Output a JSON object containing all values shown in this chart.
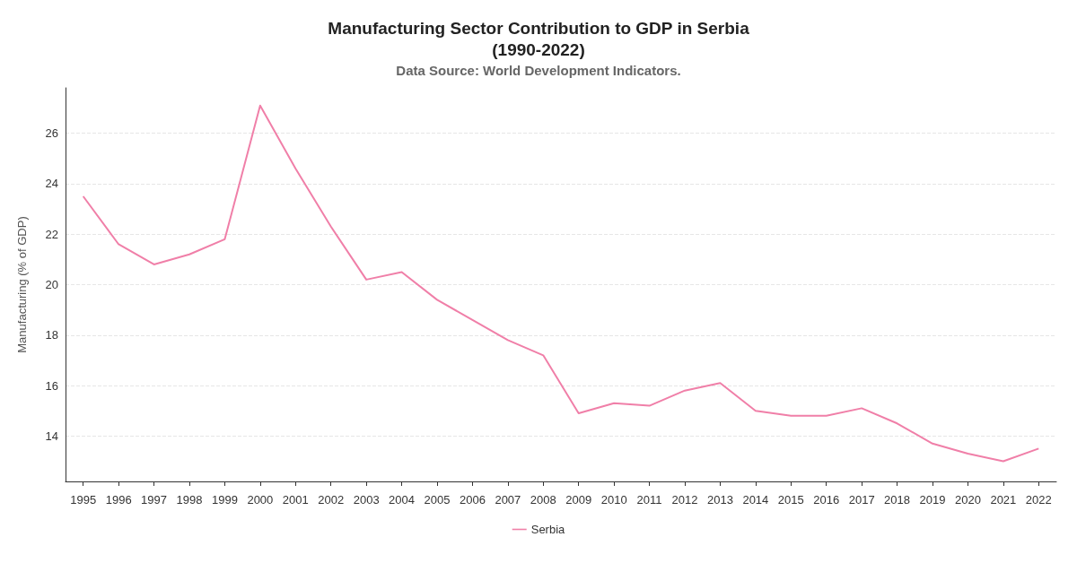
{
  "chart_data": {
    "type": "line",
    "title": "Manufacturing Sector Contribution to GDP in Serbia\n(1990-2022)",
    "subtitle": "Data Source: World Development Indicators.",
    "ylabel": "Manufacturing (% of GDP)",
    "categories": [
      "1995",
      "1996",
      "1997",
      "1998",
      "1999",
      "2000",
      "2001",
      "2002",
      "2003",
      "2004",
      "2005",
      "2006",
      "2007",
      "2008",
      "2009",
      "2010",
      "2011",
      "2012",
      "2013",
      "2014",
      "2015",
      "2016",
      "2017",
      "2018",
      "2019",
      "2020",
      "2021",
      "2022"
    ],
    "series": [
      {
        "name": "Serbia",
        "color": "#f07fa8",
        "values": [
          23.5,
          21.6,
          20.8,
          21.2,
          21.8,
          27.1,
          24.6,
          22.3,
          20.2,
          20.5,
          19.4,
          18.6,
          17.8,
          17.2,
          14.9,
          15.3,
          15.2,
          15.8,
          16.1,
          15.0,
          14.8,
          14.8,
          15.1,
          14.5,
          13.7,
          13.3,
          13.0,
          13.5
        ]
      }
    ],
    "ylim": [
      12.2,
      27.8
    ],
    "yticks": [
      14,
      16,
      18,
      20,
      22,
      24,
      26
    ],
    "grid": "y",
    "legend": "bottom",
    "marker": "none",
    "line_style": "solid"
  }
}
